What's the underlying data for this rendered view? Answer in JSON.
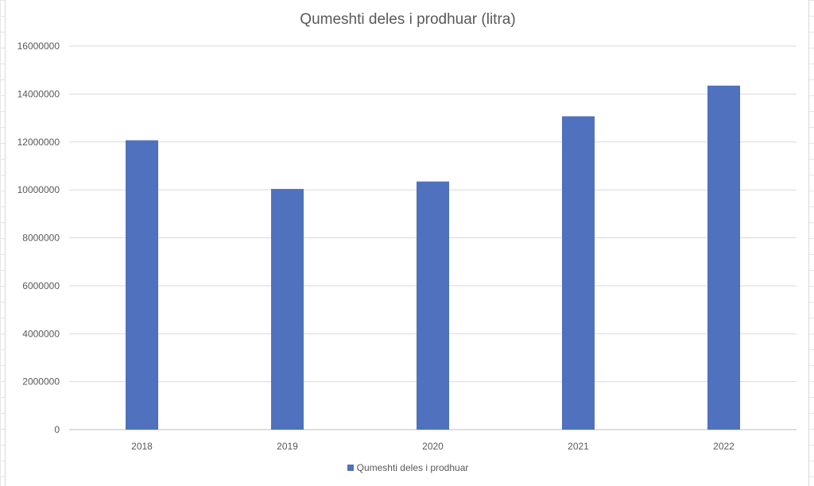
{
  "chart_data": {
    "type": "bar",
    "title": "Qumeshti deles i prodhuar (litra)",
    "categories": [
      "2018",
      "2019",
      "2020",
      "2021",
      "2022"
    ],
    "series": [
      {
        "name": "Qumeshti deles i prodhuar",
        "values": [
          12070000,
          10040000,
          10350000,
          13070000,
          14350000
        ],
        "color": "#4f71be"
      }
    ],
    "ylim": [
      0,
      16000000
    ],
    "yticks": [
      "0",
      "2000000",
      "4000000",
      "6000000",
      "8000000",
      "10000000",
      "12000000",
      "14000000",
      "16000000"
    ],
    "grid": true,
    "legend_position": "bottom",
    "xlabel": "",
    "ylabel": ""
  }
}
